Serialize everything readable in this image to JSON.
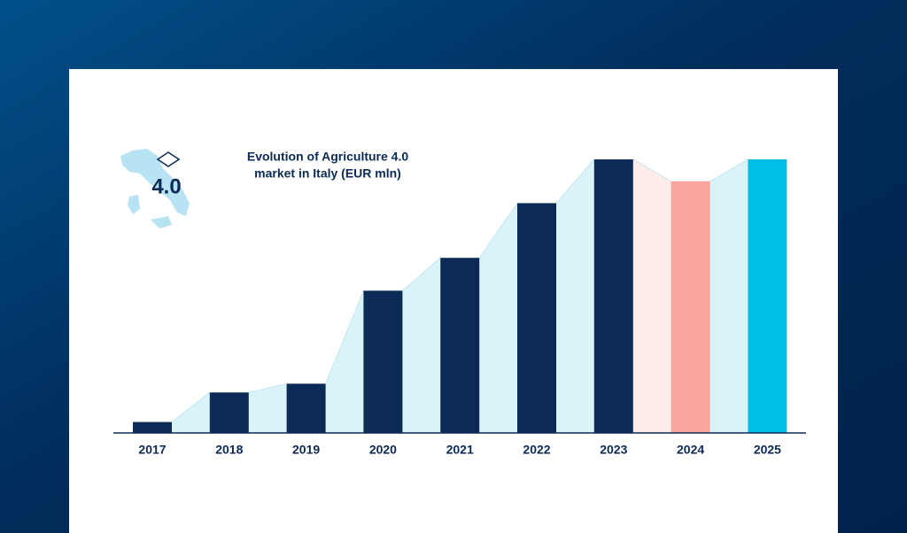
{
  "chart_data": {
    "type": "bar",
    "title": [
      "Evolution of Agriculture 4.0",
      "market in Italy (EUR mln)"
    ],
    "logo_text": "4.0",
    "categories": [
      "2017",
      "2018",
      "2019",
      "2020",
      "2021",
      "2022",
      "2023",
      "2024",
      "2025"
    ],
    "values": [
      100,
      370,
      450,
      1300,
      1600,
      2100,
      2500,
      2300,
      2500
    ],
    "colors": [
      "#0b2a55",
      "#0b2a55",
      "#0b2a55",
      "#0b2a55",
      "#0b2a55",
      "#0b2a55",
      "#0b2a55",
      "#f8a59c",
      "#00bee6"
    ],
    "gap_colors": [
      "#daf3f9",
      "#daf3f9",
      "#daf3f9",
      "#daf3f9",
      "#daf3f9",
      "#daf3f9",
      "#fdece9",
      "#daf3f9"
    ]
  }
}
